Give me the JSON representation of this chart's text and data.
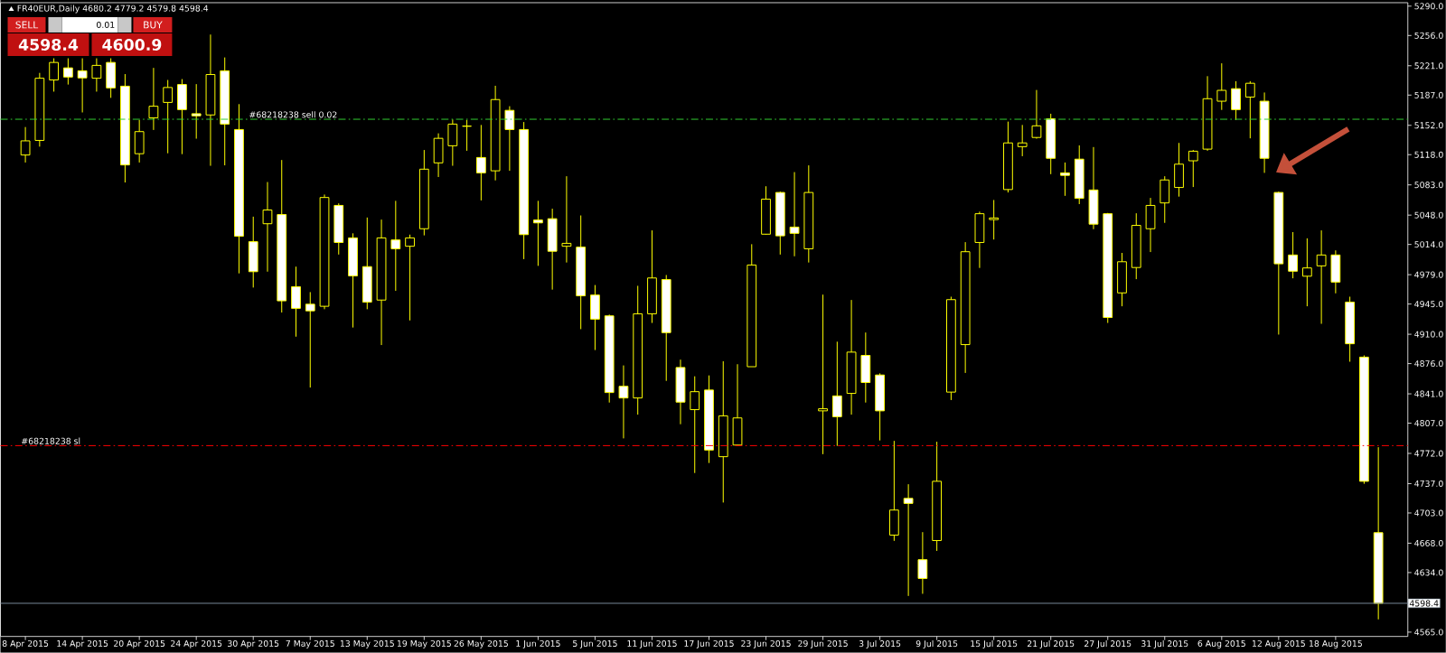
{
  "chart_data": {
    "type": "candlestick",
    "title": "FR40EUR,Daily 4680.2 4779.2 4579.8 4598.4",
    "categories": [
      "8 Apr 2015",
      null,
      null,
      null,
      "14 Apr 2015",
      null,
      null,
      null,
      "20 Apr 2015",
      null,
      null,
      null,
      "24 Apr 2015",
      null,
      null,
      null,
      "30 Apr 2015",
      null,
      null,
      null,
      "7 May 2015",
      null,
      null,
      null,
      "13 May 2015",
      null,
      null,
      null,
      "19 May 2015",
      null,
      null,
      null,
      "26 May 2015",
      null,
      null,
      null,
      "1 Jun 2015",
      null,
      null,
      null,
      "5 Jun 2015",
      null,
      null,
      null,
      "11 Jun 2015",
      null,
      null,
      null,
      "17 Jun 2015",
      null,
      null,
      null,
      "23 Jun 2015",
      null,
      null,
      null,
      "29 Jun 2015",
      null,
      null,
      null,
      "3 Jul 2015",
      null,
      null,
      null,
      "9 Jul 2015",
      null,
      null,
      null,
      "15 Jul 2015",
      null,
      null,
      null,
      "21 Jul 2015",
      null,
      null,
      null,
      "27 Jul 2015",
      null,
      null,
      null,
      "31 Jul 2015",
      null,
      null,
      null,
      "6 Aug 2015",
      null,
      null,
      null,
      "12 Aug 2015",
      null,
      null,
      null,
      "18 Aug 2015",
      null,
      null,
      null
    ],
    "ohlc": [
      [
        5117.6,
        5150.0,
        5108.9,
        5134.0
      ],
      [
        5134.5,
        5212.7,
        5127.3,
        5206.5
      ],
      [
        5204.5,
        5229.6,
        5191.0,
        5224.8
      ],
      [
        5218.5,
        5229.6,
        5199.2,
        5207.9
      ],
      [
        5215.1,
        5229.6,
        5166.9,
        5206.9
      ],
      [
        5206.5,
        5229.6,
        5191.0,
        5221.4
      ],
      [
        5224.8,
        5229.6,
        5183.8,
        5195.3
      ],
      [
        5197.3,
        5211.3,
        5085.8,
        5106.1
      ],
      [
        5119.1,
        5158.2,
        5108.9,
        5144.7
      ],
      [
        5160.6,
        5218.5,
        5146.6,
        5174.1
      ],
      [
        5178.5,
        5204.5,
        5119.6,
        5195.8
      ],
      [
        5199.2,
        5205.5,
        5118.6,
        5170.2
      ],
      [
        5165.4,
        5199.7,
        5136.5,
        5163.0
      ],
      [
        5164.0,
        5257.1,
        5105.1,
        5210.8
      ],
      [
        5215.1,
        5230.6,
        5105.6,
        5153.4
      ],
      [
        5147.1,
        5176.5,
        4980.5,
        5023.5
      ],
      [
        5017.2,
        5046.2,
        4964.1,
        4982.5
      ],
      [
        5038.0,
        5086.3,
        4982.5,
        5053.9
      ],
      [
        5048.6,
        5111.8,
        4935.2,
        4948.7
      ],
      [
        4965.1,
        4988.3,
        4907.2,
        4940.0
      ],
      [
        4944.8,
        4958.8,
        4848.3,
        4937.1
      ],
      [
        4942.4,
        5071.8,
        4939.0,
        5068.4
      ],
      [
        5059.2,
        5061.6,
        5002.3,
        5016.3
      ],
      [
        5021.6,
        5026.9,
        4917.8,
        4977.6
      ],
      [
        4988.3,
        5045.2,
        4939.0,
        4947.2
      ],
      [
        4949.6,
        5042.8,
        4897.5,
        5021.6
      ],
      [
        5019.2,
        5064.5,
        4960.3,
        5009.0
      ],
      [
        5011.9,
        5025.4,
        4926.0,
        5021.6
      ],
      [
        5032.2,
        5123.4,
        5024.5,
        5101.2
      ],
      [
        5108.5,
        5142.7,
        5092.1,
        5136.9
      ],
      [
        5128.3,
        5158.7,
        5105.1,
        5153.4
      ],
      [
        5151.0,
        5158.2,
        5122.5,
        5151.0
      ],
      [
        5114.7,
        5152.4,
        5065.0,
        5096.9
      ],
      [
        5099.3,
        5197.8,
        5088.2,
        5181.8
      ],
      [
        5169.3,
        5174.1,
        5099.3,
        5147.1
      ],
      [
        5147.1,
        5155.8,
        4997.0,
        5025.4
      ],
      [
        5042.3,
        5064.5,
        4989.2,
        5039.0
      ],
      [
        5043.8,
        5055.4,
        4961.7,
        5006.1
      ],
      [
        5011.9,
        5093.0,
        4993.1,
        5015.3
      ],
      [
        5010.9,
        5047.6,
        4915.9,
        4954.5
      ],
      [
        4955.4,
        4967.0,
        4891.7,
        4927.5
      ],
      [
        4931.3,
        4932.8,
        4830.9,
        4842.5
      ],
      [
        4849.7,
        4873.9,
        4789.4,
        4836.2
      ],
      [
        4836.2,
        4966.1,
        4816.9,
        4933.7
      ],
      [
        4933.7,
        5030.3,
        4923.1,
        4975.2
      ],
      [
        4973.3,
        4978.6,
        4856.0,
        4911.9
      ],
      [
        4871.5,
        4880.6,
        4805.8,
        4831.4
      ],
      [
        4822.7,
        4861.3,
        4749.3,
        4843.5
      ],
      [
        4845.4,
        4862.3,
        4760.9,
        4775.9
      ],
      [
        4768.2,
        4878.7,
        4715.1,
        4815.5
      ],
      [
        4781.7,
        4875.3,
        4781.7,
        4813.1
      ],
      [
        4872.4,
        5014.3,
        4872.4,
        4990.2
      ],
      [
        5025.9,
        5081.4,
        5025.4,
        5066.5
      ],
      [
        5074.2,
        5075.2,
        5002.3,
        5024.0
      ],
      [
        5034.1,
        5097.8,
        5000.3,
        5026.9
      ],
      [
        5009.0,
        5105.6,
        4993.1,
        5074.2
      ],
      [
        4821.3,
        4955.9,
        4771.1,
        4823.7
      ],
      [
        4838.6,
        4901.4,
        4780.7,
        4814.5
      ],
      [
        4841.5,
        4949.7,
        4816.9,
        4889.3
      ],
      [
        4885.5,
        4912.0,
        4830.9,
        4854.1
      ],
      [
        4862.8,
        4864.7,
        4787.0,
        4821.3
      ],
      [
        4677.4,
        4786.5,
        4670.7,
        4706.4
      ],
      [
        4719.9,
        4736.3,
        4606.9,
        4714.1
      ],
      [
        4648.9,
        4680.8,
        4609.4,
        4627.2
      ],
      [
        4671.1,
        4785.5,
        4659.1,
        4739.7
      ],
      [
        4843.0,
        4953.5,
        4833.8,
        4950.1
      ],
      [
        4898.0,
        5016.7,
        4865.2,
        5005.6
      ],
      [
        5016.3,
        5052.0,
        4986.8,
        5049.6
      ],
      [
        5042.8,
        5065.5,
        5019.7,
        5044.7
      ],
      [
        5077.6,
        5156.3,
        5074.2,
        5131.6
      ],
      [
        5127.3,
        5152.4,
        5116.2,
        5131.6
      ],
      [
        5137.9,
        5192.9,
        5136.5,
        5151.4
      ],
      [
        5159.6,
        5165.4,
        5095.4,
        5113.8
      ],
      [
        5096.9,
        5108.9,
        5070.3,
        5094.0
      ],
      [
        5112.8,
        5128.7,
        5060.7,
        5067.4
      ],
      [
        5077.1,
        5126.8,
        5031.7,
        5037.5
      ],
      [
        5049.6,
        5050.5,
        4923.1,
        4929.4
      ],
      [
        4957.9,
        5004.2,
        4942.4,
        4994.0
      ],
      [
        4987.3,
        5050.1,
        4973.8,
        5036.1
      ],
      [
        5032.2,
        5067.9,
        5005.2,
        5059.2
      ],
      [
        5062.1,
        5093.0,
        5039.0,
        5088.7
      ],
      [
        5080.0,
        5131.6,
        5069.4,
        5107.0
      ],
      [
        5110.9,
        5123.4,
        5080.5,
        5122.0
      ],
      [
        5124.4,
        5208.9,
        5122.5,
        5182.8
      ],
      [
        5179.9,
        5223.8,
        5169.8,
        5192.5
      ],
      [
        5194.4,
        5203.1,
        5158.2,
        5170.2
      ],
      [
        5184.7,
        5203.1,
        5136.9,
        5200.7
      ],
      [
        5179.9,
        5190.0,
        5096.9,
        5113.8
      ],
      [
        5074.2,
        5075.2,
        4909.6,
        4991.6
      ],
      [
        5001.8,
        5028.3,
        4974.8,
        4983.0
      ],
      [
        4977.2,
        5021.1,
        4942.4,
        4986.8
      ],
      [
        4989.2,
        5030.3,
        4922.1,
        5001.8
      ],
      [
        5001.8,
        5007.1,
        4957.4,
        4970.4
      ],
      [
        4947.2,
        4953.5,
        4878.2,
        4899.0
      ],
      [
        4883.5,
        4885.5,
        4736.8,
        4739.7
      ],
      [
        4680.2,
        4779.2,
        4579.8,
        4598.4
      ]
    ],
    "color": "#ffff00",
    "ylim": [
      4560,
      5294
    ],
    "yticks": [
      {
        "value": 5290,
        "label": "5290.0"
      },
      {
        "value": 5256,
        "label": "5256.0"
      },
      {
        "value": 5221,
        "label": "5221.0"
      },
      {
        "value": 5187,
        "label": "5187.0"
      },
      {
        "value": 5152,
        "label": "5152.0"
      },
      {
        "value": 5118,
        "label": "5118.0"
      },
      {
        "value": 5083,
        "label": "5083.0"
      },
      {
        "value": 5048,
        "label": "5048.0"
      },
      {
        "value": 5014,
        "label": "5014.0"
      },
      {
        "value": 4979,
        "label": "4979.0"
      },
      {
        "value": 4945,
        "label": "4945.0"
      },
      {
        "value": 4910,
        "label": "4910.0"
      },
      {
        "value": 4876,
        "label": "4876.0"
      },
      {
        "value": 4841,
        "label": "4841.0"
      },
      {
        "value": 4807,
        "label": "4807.0"
      },
      {
        "value": 4772,
        "label": "4772.0"
      },
      {
        "value": 4737,
        "label": "4737.0"
      },
      {
        "value": 4703,
        "label": "4703.0"
      },
      {
        "value": 4668,
        "label": "4668.0"
      },
      {
        "value": 4634,
        "label": "4634.0"
      },
      {
        "value": 4565,
        "label": "4565.0"
      }
    ],
    "ref_lines": [
      {
        "axis": "y",
        "value": 5159,
        "label": "#68218238 sell 0.02",
        "color": "#32cd32",
        "line_style": "dashdot"
      },
      {
        "axis": "y",
        "value": 4781,
        "label": "#68218238 sl",
        "color": "#ff0000",
        "line_style": "dashdot"
      },
      {
        "axis": "y",
        "value": 4598.4,
        "label": "4598.4",
        "color": "#778899",
        "line_style": "solid"
      }
    ],
    "annotations": [
      "SELL",
      "0.01",
      "BUY",
      "4598.4",
      "4600.9"
    ]
  }
}
